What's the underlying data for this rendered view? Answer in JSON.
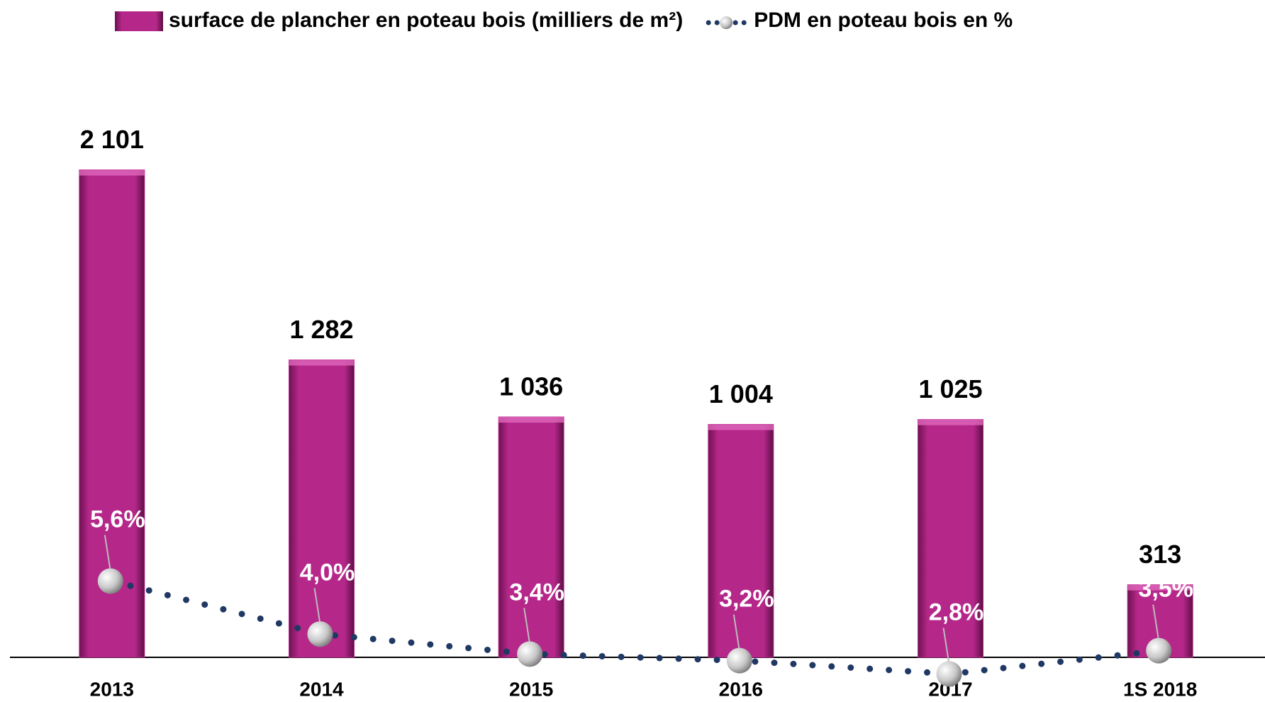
{
  "chart_data": {
    "type": "bar",
    "categories": [
      "2013",
      "2014",
      "2015",
      "2016",
      "2017",
      "1S 2018"
    ],
    "series": [
      {
        "name": "surface de plancher en poteau bois (milliers de m²)",
        "type": "bar",
        "color": "#b5288a",
        "values": [
          2101,
          1282,
          1036,
          1004,
          1025,
          313
        ],
        "value_labels": [
          "2 101",
          "1 282",
          "1 036",
          "1 004",
          "1 025",
          "313"
        ]
      },
      {
        "name": "PDM en poteau bois en %",
        "type": "line",
        "axis": "y2",
        "color": "#1f3864",
        "values": [
          5.6,
          4.0,
          3.4,
          3.2,
          2.8,
          3.5
        ],
        "value_labels": [
          "5,6%",
          "4,0%",
          "3,4%",
          "3,2%",
          "2,8%",
          "3,5%"
        ]
      }
    ],
    "ylim": [
      0,
      2500
    ],
    "y2lim": [
      3.3,
      20.8
    ],
    "legend": "top"
  }
}
